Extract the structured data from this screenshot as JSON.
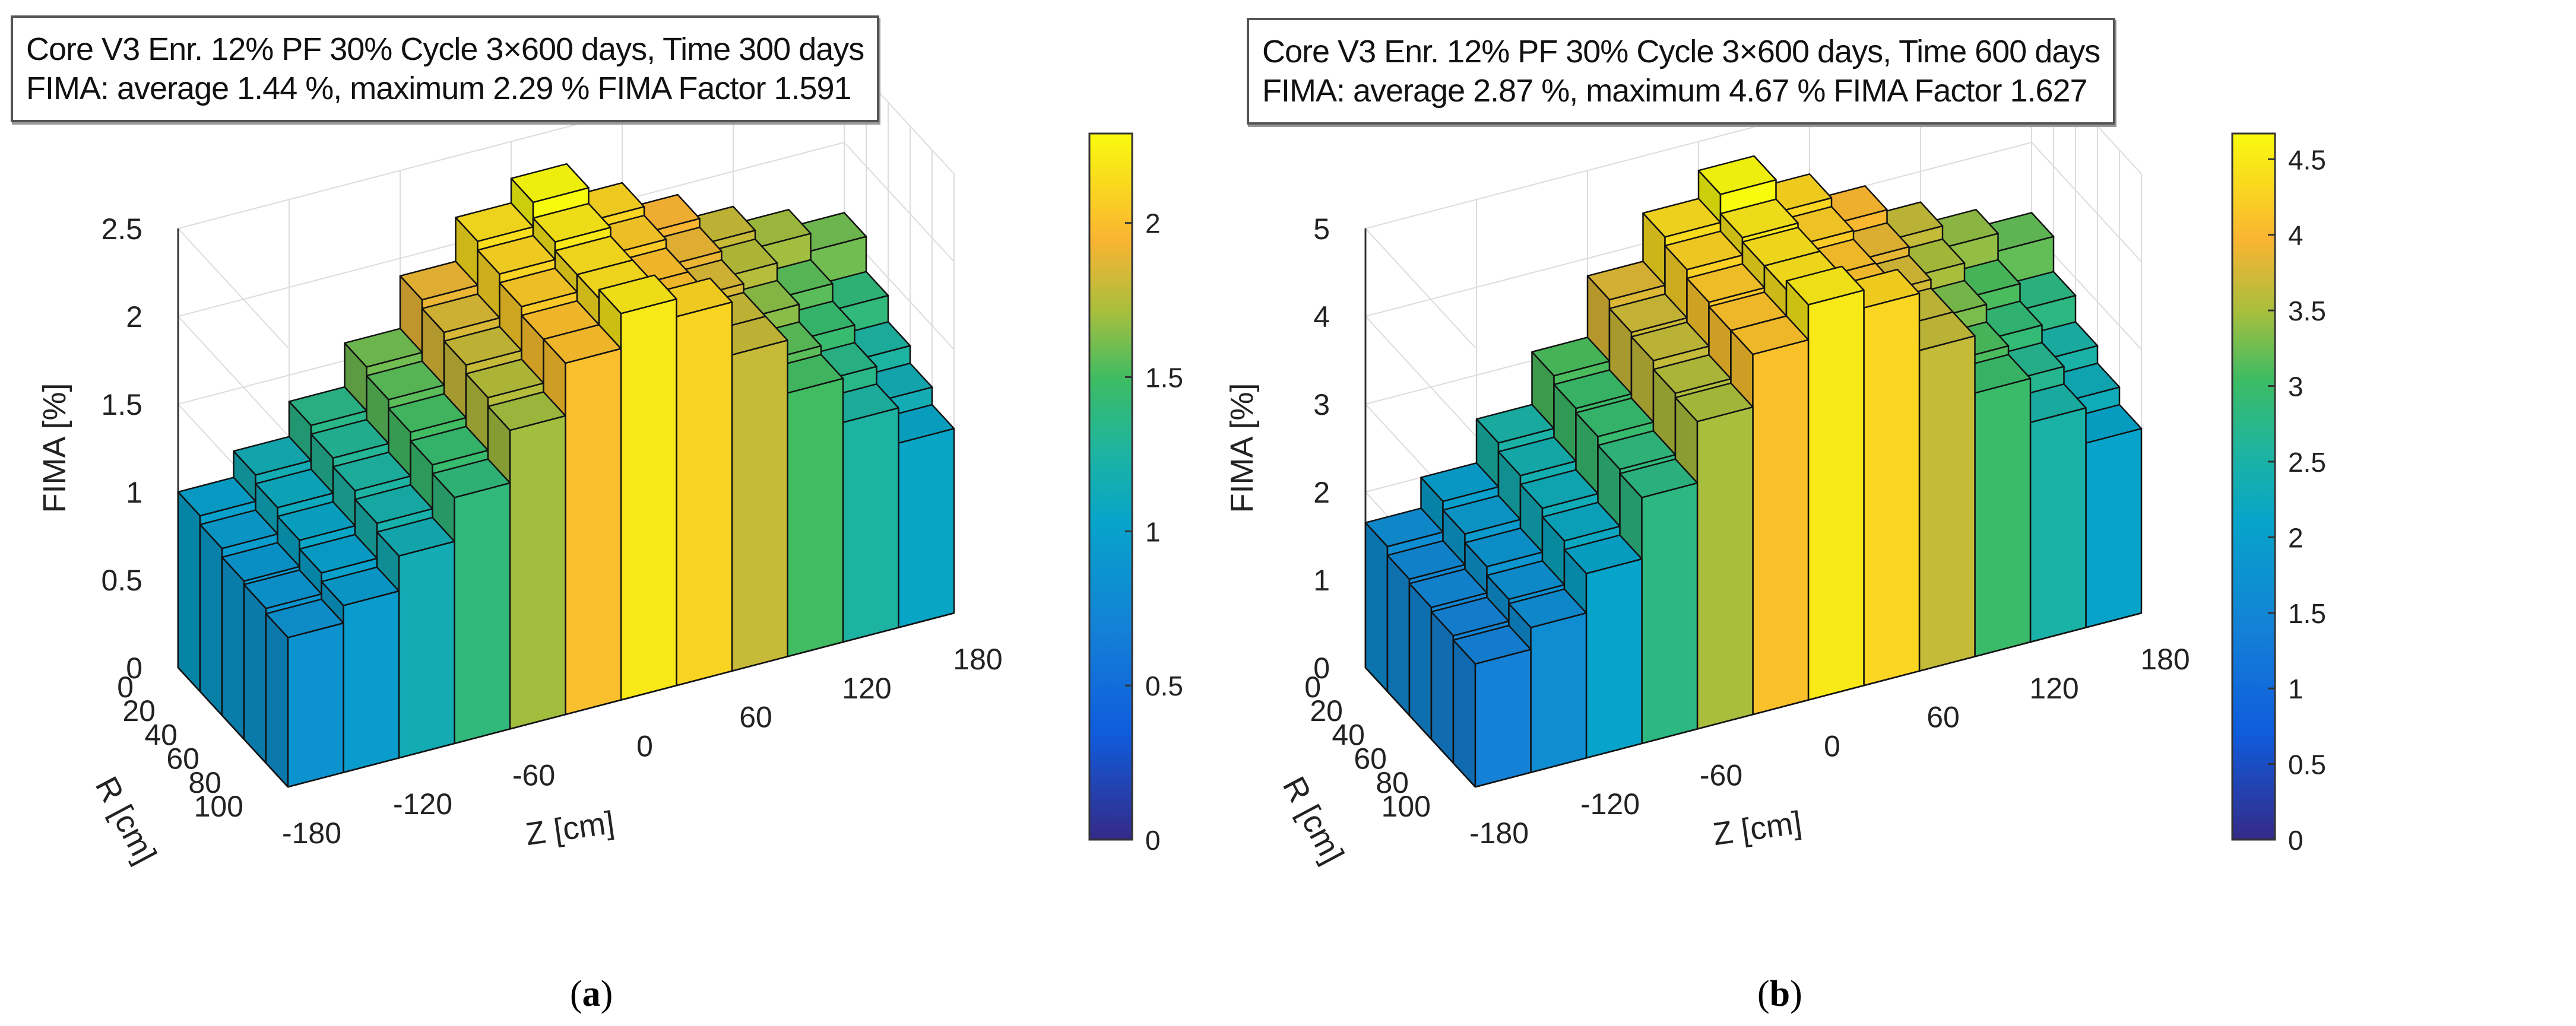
{
  "chart_data": [
    {
      "type": "bar3d",
      "panel_label": "a",
      "title_line1": "Core V3 Enr. 12% PF 30%  Cycle 3×600 days, Time  300 days",
      "title_line2": "FIMA: average  1.44 %,  maximum  2.29 % FIMA Factor 1.591",
      "xlabel": "Z [cm]",
      "ylabel": "R [cm]",
      "zlabel": "FIMA [%]",
      "z_ticks": [
        -180,
        -120,
        -60,
        0,
        60,
        120,
        180
      ],
      "r_ticks": [
        0,
        20,
        40,
        60,
        80,
        100
      ],
      "fima_ticks": [
        0,
        0.5,
        1,
        1.5,
        2,
        2.5
      ],
      "fima_tick_labels": [
        "0",
        "0.5",
        "1",
        "1.5",
        "2",
        "2.5"
      ],
      "fima_lim": [
        0,
        2.5
      ],
      "colorbar_lim": [
        0,
        2.29
      ],
      "colorbar_ticks": [
        0,
        0.5,
        1,
        1.5,
        2
      ],
      "colorbar_tick_labels": [
        "0",
        "0.5",
        "1",
        "1.5",
        "2"
      ],
      "z_bins": [
        -165,
        -135,
        -105,
        -75,
        -45,
        -15,
        15,
        45,
        75,
        105,
        135,
        165
      ],
      "r_bins": [
        10,
        30,
        50,
        70,
        90
      ],
      "values": [
        [
          1.0,
          1.15,
          1.35,
          1.6,
          1.9,
          2.15,
          2.29,
          2.1,
          1.95,
          1.8,
          1.7,
          1.6
        ],
        [
          0.95,
          1.1,
          1.3,
          1.55,
          1.85,
          2.1,
          2.2,
          2.05,
          1.9,
          1.75,
          1.55,
          1.4
        ],
        [
          0.9,
          1.05,
          1.25,
          1.5,
          1.8,
          2.05,
          2.15,
          2.0,
          1.85,
          1.65,
          1.45,
          1.25
        ],
        [
          0.88,
          1.0,
          1.2,
          1.45,
          1.75,
          2.0,
          2.15,
          2.0,
          1.8,
          1.55,
          1.35,
          1.15
        ],
        [
          0.85,
          0.95,
          1.15,
          1.4,
          1.7,
          2.0,
          2.2,
          2.1,
          1.8,
          1.5,
          1.25,
          1.05
        ]
      ]
    },
    {
      "type": "bar3d",
      "panel_label": "b",
      "title_line1": "Core V3 Enr. 12% PF 30%  Cycle 3×600 days, Time  600 days",
      "title_line2": "FIMA: average  2.87 %,  maximum  4.67 % FIMA Factor 1.627",
      "xlabel": "Z [cm]",
      "ylabel": "R [cm]",
      "zlabel": "FIMA [%]",
      "z_ticks": [
        -180,
        -120,
        -60,
        0,
        60,
        120,
        180
      ],
      "r_ticks": [
        0,
        20,
        40,
        60,
        80,
        100
      ],
      "fima_ticks": [
        0,
        1,
        2,
        3,
        4,
        5
      ],
      "fima_tick_labels": [
        "0",
        "1",
        "2",
        "3",
        "4",
        "5"
      ],
      "fima_lim": [
        0,
        5
      ],
      "colorbar_lim": [
        0,
        4.67
      ],
      "colorbar_ticks": [
        0,
        0.5,
        1,
        1.5,
        2,
        2.5,
        3,
        3.5,
        4,
        4.5
      ],
      "colorbar_tick_labels": [
        "0",
        "0.5",
        "1",
        "1.5",
        "2",
        "2.5",
        "3",
        "3.5",
        "4",
        "4.5"
      ],
      "z_bins": [
        -165,
        -135,
        -105,
        -75,
        -45,
        -15,
        15,
        45,
        75,
        105,
        135,
        165
      ],
      "r_bins": [
        10,
        30,
        50,
        70,
        90
      ],
      "values": [
        [
          1.65,
          2.0,
          2.5,
          3.1,
          3.8,
          4.35,
          4.67,
          4.3,
          4.0,
          3.65,
          3.4,
          3.2
        ],
        [
          1.55,
          1.9,
          2.4,
          3.0,
          3.7,
          4.25,
          4.45,
          4.2,
          3.85,
          3.5,
          3.1,
          2.8
        ],
        [
          1.5,
          1.8,
          2.3,
          2.95,
          3.65,
          4.15,
          4.4,
          4.1,
          3.75,
          3.3,
          2.9,
          2.5
        ],
        [
          1.45,
          1.7,
          2.2,
          2.85,
          3.55,
          4.1,
          4.4,
          4.1,
          3.65,
          3.1,
          2.7,
          2.3
        ],
        [
          1.4,
          1.65,
          2.1,
          2.8,
          3.5,
          4.1,
          4.5,
          4.3,
          3.65,
          3.0,
          2.5,
          2.1
        ]
      ]
    }
  ]
}
